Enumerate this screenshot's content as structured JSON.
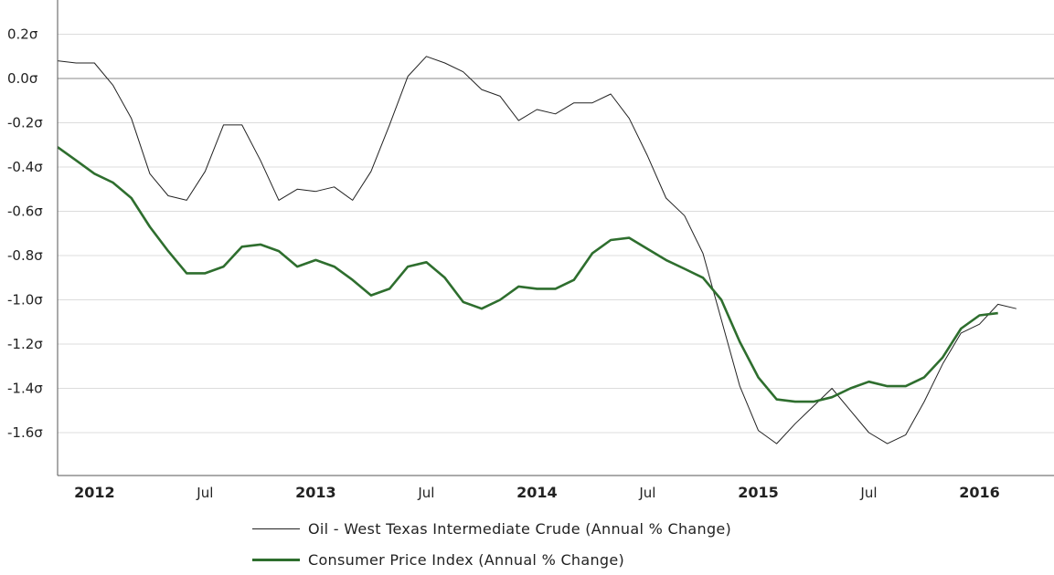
{
  "chart_data": {
    "type": "line",
    "title": "",
    "xlabel": "",
    "ylabel": "",
    "ylim": [
      -1.8,
      0.35
    ],
    "y_ticks": [
      {
        "value": 0.2,
        "label": "0.2σ"
      },
      {
        "value": 0.0,
        "label": "0.0σ"
      },
      {
        "value": -0.2,
        "label": "-0.2σ"
      },
      {
        "value": -0.4,
        "label": "-0.4σ"
      },
      {
        "value": -0.6,
        "label": "-0.6σ"
      },
      {
        "value": -0.8,
        "label": "-0.8σ"
      },
      {
        "value": -1.0,
        "label": "-1.0σ"
      },
      {
        "value": -1.2,
        "label": "-1.2σ"
      },
      {
        "value": -1.4,
        "label": "-1.4σ"
      },
      {
        "value": -1.6,
        "label": "-1.6σ"
      }
    ],
    "x_ticks": [
      {
        "date": "2012-01",
        "label": "2012",
        "year": true
      },
      {
        "date": "2012-07",
        "label": "Jul",
        "year": false
      },
      {
        "date": "2013-01",
        "label": "2013",
        "year": true
      },
      {
        "date": "2013-07",
        "label": "Jul",
        "year": false
      },
      {
        "date": "2014-01",
        "label": "2014",
        "year": true
      },
      {
        "date": "2014-07",
        "label": "Jul",
        "year": false
      },
      {
        "date": "2015-01",
        "label": "2015",
        "year": true
      },
      {
        "date": "2015-07",
        "label": "Jul",
        "year": false
      },
      {
        "date": "2016-01",
        "label": "2016",
        "year": true
      }
    ],
    "grid": true,
    "legend_position": "bottom",
    "series": [
      {
        "name": "Oil - West Texas Intermediate Crude (Annual % Change)",
        "color": "#222222",
        "style": "thin",
        "x": [
          "2011-11",
          "2011-12",
          "2012-01",
          "2012-02",
          "2012-03",
          "2012-04",
          "2012-05",
          "2012-06",
          "2012-07",
          "2012-08",
          "2012-09",
          "2012-10",
          "2012-11",
          "2012-12",
          "2013-01",
          "2013-02",
          "2013-03",
          "2013-04",
          "2013-05",
          "2013-06",
          "2013-07",
          "2013-08",
          "2013-09",
          "2013-10",
          "2013-11",
          "2013-12",
          "2014-01",
          "2014-02",
          "2014-03",
          "2014-04",
          "2014-05",
          "2014-06",
          "2014-07",
          "2014-08",
          "2014-09",
          "2014-10",
          "2014-11",
          "2014-12",
          "2015-01",
          "2015-02",
          "2015-03",
          "2015-04",
          "2015-05",
          "2015-06",
          "2015-07",
          "2015-08",
          "2015-09",
          "2015-10",
          "2015-11",
          "2015-12",
          "2016-01",
          "2016-02",
          "2016-03"
        ],
        "values": [
          0.08,
          0.07,
          0.07,
          -0.03,
          -0.18,
          -0.43,
          -0.53,
          -0.55,
          -0.42,
          -0.21,
          -0.21,
          -0.37,
          -0.55,
          -0.5,
          -0.51,
          -0.49,
          -0.55,
          -0.42,
          -0.21,
          0.01,
          0.1,
          0.07,
          0.03,
          -0.05,
          -0.08,
          -0.19,
          -0.14,
          -0.16,
          -0.11,
          -0.11,
          -0.07,
          -0.18,
          -0.35,
          -0.54,
          -0.62,
          -0.79,
          -1.09,
          -1.39,
          -1.59,
          -1.65,
          -1.56,
          -1.48,
          -1.4,
          -1.5,
          -1.6,
          -1.65,
          -1.61,
          -1.46,
          -1.29,
          -1.15,
          -1.11,
          -1.02,
          -1.04
        ]
      },
      {
        "name": "Consumer Price Index (Annual % Change)",
        "color": "#2e6e2e",
        "style": "thick",
        "x": [
          "2011-11",
          "2011-12",
          "2012-01",
          "2012-02",
          "2012-03",
          "2012-04",
          "2012-05",
          "2012-06",
          "2012-07",
          "2012-08",
          "2012-09",
          "2012-10",
          "2012-11",
          "2012-12",
          "2013-01",
          "2013-02",
          "2013-03",
          "2013-04",
          "2013-05",
          "2013-06",
          "2013-07",
          "2013-08",
          "2013-09",
          "2013-10",
          "2013-11",
          "2013-12",
          "2014-01",
          "2014-02",
          "2014-03",
          "2014-04",
          "2014-05",
          "2014-06",
          "2014-07",
          "2014-08",
          "2014-09",
          "2014-10",
          "2014-11",
          "2014-12",
          "2015-01",
          "2015-02",
          "2015-03",
          "2015-04",
          "2015-05",
          "2015-06",
          "2015-07",
          "2015-08",
          "2015-09",
          "2015-10",
          "2015-11",
          "2015-12",
          "2016-01",
          "2016-02"
        ],
        "values": [
          -0.31,
          -0.37,
          -0.43,
          -0.47,
          -0.54,
          -0.67,
          -0.78,
          -0.88,
          -0.88,
          -0.85,
          -0.76,
          -0.75,
          -0.78,
          -0.85,
          -0.82,
          -0.85,
          -0.91,
          -0.98,
          -0.95,
          -0.85,
          -0.83,
          -0.9,
          -1.01,
          -1.04,
          -1.0,
          -0.94,
          -0.95,
          -0.95,
          -0.91,
          -0.79,
          -0.73,
          -0.72,
          -0.77,
          -0.82,
          -0.86,
          -0.9,
          -1.0,
          -1.19,
          -1.35,
          -1.45,
          -1.46,
          -1.46,
          -1.44,
          -1.4,
          -1.37,
          -1.39,
          -1.39,
          -1.35,
          -1.26,
          -1.13,
          -1.07,
          -1.06
        ]
      }
    ]
  }
}
